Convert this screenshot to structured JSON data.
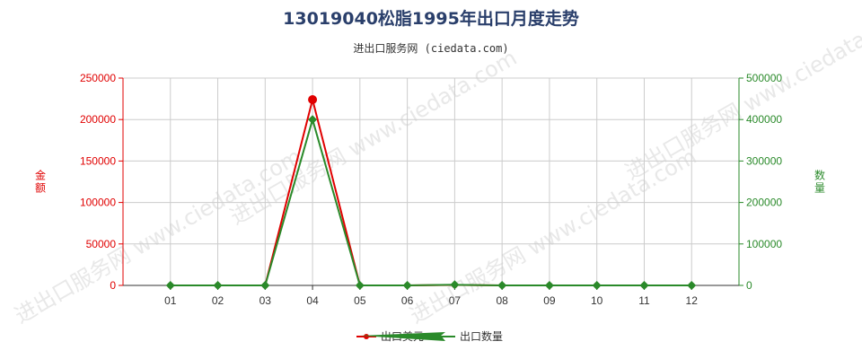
{
  "title": "13019040松脂1995年出口月度走势",
  "subtitle": "进出口服务网 (ciedata.com)",
  "watermark": "进出口服务网 www.ciedata.com",
  "colors": {
    "left_axis": "#e00000",
    "right_axis": "#2a8a2a",
    "usd_series": "#e00000",
    "qty_series": "#2a8a2a",
    "grid": "#cccccc",
    "title": "#2a3f6b"
  },
  "chart_data": {
    "type": "line",
    "categories": [
      "01",
      "02",
      "03",
      "04",
      "05",
      "06",
      "07",
      "08",
      "09",
      "10",
      "11",
      "12"
    ],
    "y_left": {
      "label": "金额",
      "min": 0,
      "max": 250000,
      "ticks": [
        0,
        50000,
        100000,
        150000,
        200000,
        250000
      ]
    },
    "y_right": {
      "label": "数量",
      "min": 0,
      "max": 500000,
      "ticks": [
        0,
        100000,
        200000,
        300000,
        400000,
        500000
      ]
    },
    "series": [
      {
        "name": "出口美元",
        "axis": "left",
        "values": [
          0,
          0,
          0,
          224000,
          0,
          0,
          500,
          0,
          0,
          0,
          0,
          0
        ]
      },
      {
        "name": "出口数量",
        "axis": "right",
        "values": [
          0,
          0,
          0,
          400000,
          0,
          0,
          1500,
          0,
          0,
          0,
          0,
          0
        ]
      }
    ],
    "grid": true,
    "legend_position": "bottom-center"
  }
}
